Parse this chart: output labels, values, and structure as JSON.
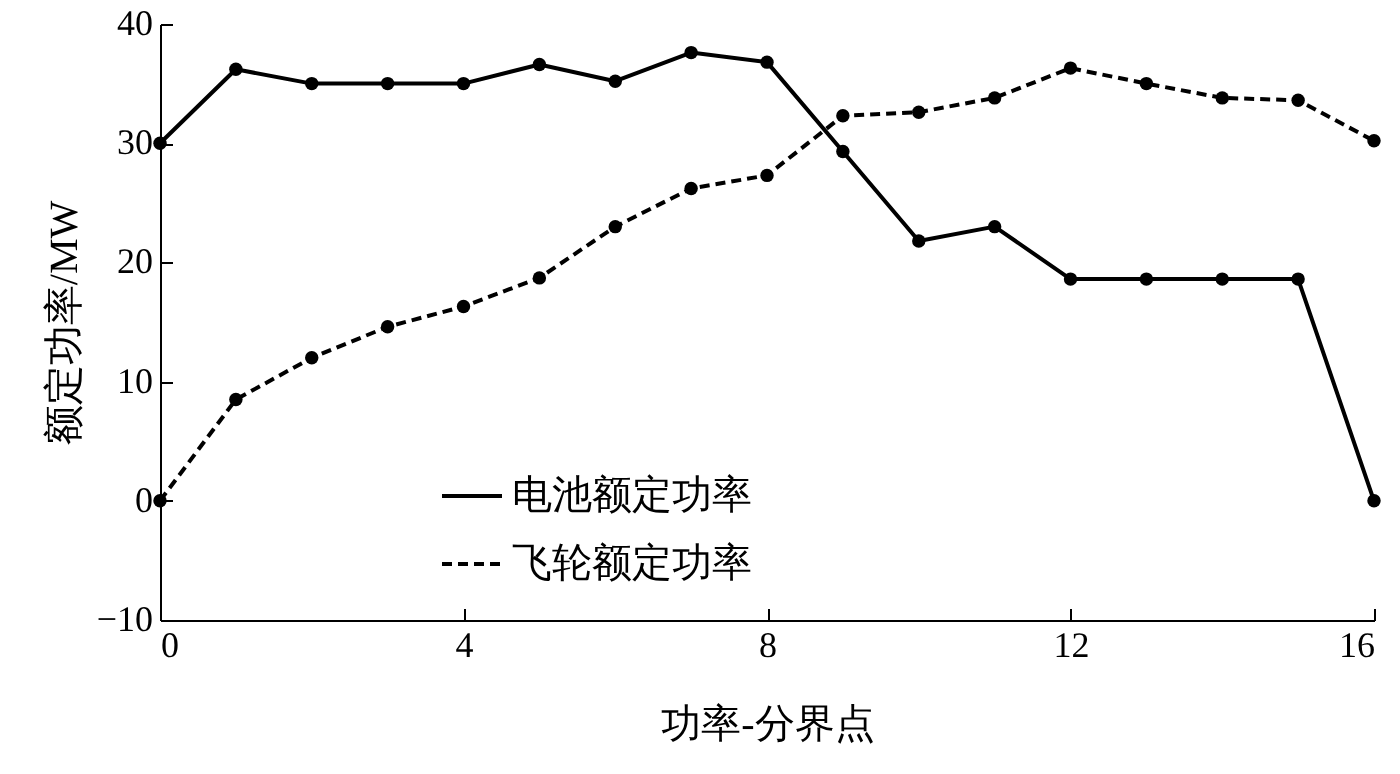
{
  "chart_data": {
    "type": "line",
    "xlabel": "功率-分界点",
    "ylabel": "额定功率/MW",
    "x": [
      0,
      1,
      2,
      3,
      4,
      5,
      6,
      7,
      8,
      9,
      10,
      11,
      12,
      13,
      14,
      15,
      16
    ],
    "xlim": [
      0,
      16
    ],
    "xticks": [
      0,
      4,
      8,
      12,
      16
    ],
    "ylim": [
      -10,
      40
    ],
    "yticks": [
      -10,
      0,
      10,
      20,
      30,
      40
    ],
    "grid": false,
    "legend": "bottom",
    "marker": "circle",
    "series": [
      {
        "name": "电池额定功率",
        "color": "#000000",
        "line_style": "solid",
        "values": [
          30,
          36.2,
          35,
          35,
          35,
          36.6,
          35.2,
          37.6,
          36.8,
          29.3,
          21.8,
          23,
          18.6,
          18.6,
          18.6,
          18.6,
          0
        ]
      },
      {
        "name": "飞轮额定功率",
        "color": "#000000",
        "line_style": "dashed",
        "values": [
          0,
          8.5,
          12,
          14.6,
          16.3,
          18.7,
          23,
          26.2,
          27.3,
          32.3,
          32.6,
          33.8,
          36.3,
          35,
          33.8,
          33.6,
          30.2
        ]
      }
    ]
  }
}
